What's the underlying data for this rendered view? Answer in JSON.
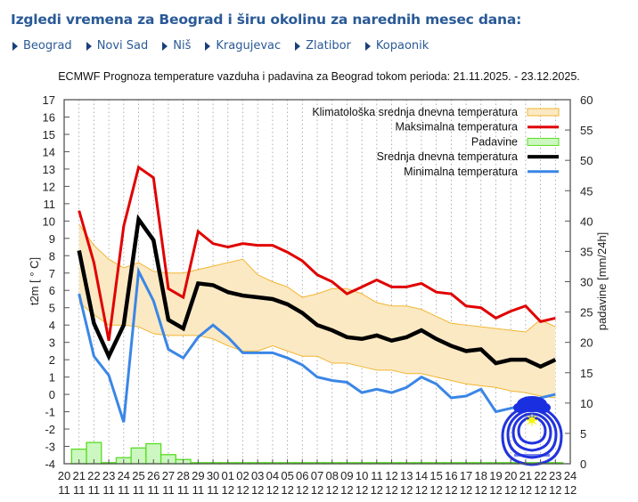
{
  "header": {
    "title": "Izgledi vremena za Beograd i širu okolinu za narednih mesec dana:"
  },
  "nav": {
    "items": [
      {
        "label": "Beograd"
      },
      {
        "label": "Novi Sad"
      },
      {
        "label": "Niš"
      },
      {
        "label": "Kragujevac"
      },
      {
        "label": "Zlatibor"
      },
      {
        "label": "Kopaonik"
      }
    ]
  },
  "colors": {
    "accent": "#2a5a97",
    "max": "#e00000",
    "mean": "#000000",
    "min": "#3a86e6",
    "clim_fill": "#fbe9c4",
    "clim_line": "#f2b632",
    "precip_fill": "#ccf7c0",
    "precip_line": "#55dd22"
  },
  "chart_data": {
    "type": "line",
    "title": "ECMWF Prognoza temperature vazduha i padavina za Beograd tokom perioda: 21.11.2025. - 23.12.2025.",
    "ylabel": "t2m [ ° C]",
    "y2label": "padavine [mm/24h]",
    "ylim": [
      -4,
      17
    ],
    "y2lim": [
      0,
      60
    ],
    "yticks": [
      "-4",
      "-3",
      "-2",
      "-1",
      "0",
      "1",
      "2",
      "3",
      "4",
      "5",
      "6",
      "7",
      "8",
      "9",
      "10",
      "11",
      "12",
      "13",
      "14",
      "15",
      "16",
      "17"
    ],
    "y2ticks": [
      "0",
      "5",
      "10",
      "15",
      "20",
      "25",
      "30",
      "35",
      "40",
      "45",
      "50",
      "55",
      "60"
    ],
    "xticks": [
      {
        "day": "20",
        "month": "11"
      },
      {
        "day": "21",
        "month": "11"
      },
      {
        "day": "22",
        "month": "11"
      },
      {
        "day": "23",
        "month": "11"
      },
      {
        "day": "24",
        "month": "11"
      },
      {
        "day": "25",
        "month": "11"
      },
      {
        "day": "26",
        "month": "11"
      },
      {
        "day": "27",
        "month": "11"
      },
      {
        "day": "28",
        "month": "11"
      },
      {
        "day": "29",
        "month": "11"
      },
      {
        "day": "30",
        "month": "11"
      },
      {
        "day": "01",
        "month": "12"
      },
      {
        "day": "02",
        "month": "12"
      },
      {
        "day": "03",
        "month": "12"
      },
      {
        "day": "04",
        "month": "12"
      },
      {
        "day": "05",
        "month": "12"
      },
      {
        "day": "06",
        "month": "12"
      },
      {
        "day": "07",
        "month": "12"
      },
      {
        "day": "08",
        "month": "12"
      },
      {
        "day": "09",
        "month": "12"
      },
      {
        "day": "10",
        "month": "12"
      },
      {
        "day": "11",
        "month": "12"
      },
      {
        "day": "12",
        "month": "12"
      },
      {
        "day": "13",
        "month": "12"
      },
      {
        "day": "14",
        "month": "12"
      },
      {
        "day": "15",
        "month": "12"
      },
      {
        "day": "16",
        "month": "12"
      },
      {
        "day": "17",
        "month": "12"
      },
      {
        "day": "18",
        "month": "12"
      },
      {
        "day": "19",
        "month": "12"
      },
      {
        "day": "20",
        "month": "12"
      },
      {
        "day": "21",
        "month": "12"
      },
      {
        "day": "22",
        "month": "12"
      },
      {
        "day": "23",
        "month": "12"
      },
      {
        "day": "24",
        "month": "12"
      }
    ],
    "x_start_index": 1,
    "legend": {
      "position": "top-right",
      "entries": [
        {
          "key": "clim",
          "label": "Klimatološka srednja dnevna temperatura"
        },
        {
          "key": "max",
          "label": "Maksimalna temperatura"
        },
        {
          "key": "precip",
          "label": "Padavine"
        },
        {
          "key": "mean",
          "label": "Srednja dnevna temperatura"
        },
        {
          "key": "min",
          "label": "Minimalna temperatura"
        }
      ]
    },
    "series": [
      {
        "name": "Maksimalna temperatura",
        "key": "max",
        "values": [
          10.6,
          7.6,
          3.1,
          9.7,
          13.1,
          12.5,
          6.1,
          5.6,
          9.4,
          8.7,
          8.5,
          8.7,
          8.6,
          8.6,
          8.2,
          7.7,
          6.9,
          6.5,
          5.8,
          6.2,
          6.6,
          6.2,
          6.2,
          6.4,
          5.9,
          5.8,
          5.1,
          5.0,
          4.4,
          4.8,
          5.1,
          4.2,
          4.4
        ]
      },
      {
        "name": "Srednja dnevna temperatura",
        "key": "mean",
        "values": [
          8.3,
          4.1,
          2.2,
          4.0,
          10.1,
          8.9,
          4.3,
          3.8,
          6.4,
          6.3,
          5.9,
          5.7,
          5.6,
          5.5,
          5.2,
          4.7,
          4.0,
          3.7,
          3.3,
          3.2,
          3.4,
          3.1,
          3.3,
          3.7,
          3.2,
          2.8,
          2.5,
          2.6,
          1.8,
          2.0,
          2.0,
          1.6,
          2.0
        ]
      },
      {
        "name": "Minimalna temperatura",
        "key": "min",
        "values": [
          5.8,
          2.2,
          1.1,
          -1.6,
          7.1,
          5.4,
          2.6,
          2.1,
          3.3,
          4.0,
          3.3,
          2.4,
          2.4,
          2.4,
          2.1,
          1.7,
          1.0,
          0.8,
          0.7,
          0.1,
          0.3,
          0.1,
          0.4,
          1.0,
          0.6,
          -0.2,
          -0.1,
          0.3,
          -1.0,
          -0.8,
          -0.6,
          -0.2,
          0.0
        ]
      },
      {
        "name": "Klimatološka srednja dnevna temperatura (gornja)",
        "key": "clim_hi",
        "values": [
          9.8,
          8.6,
          7.8,
          7.3,
          7.6,
          7.1,
          7.0,
          7.0,
          7.2,
          7.4,
          7.6,
          7.8,
          6.9,
          6.5,
          6.2,
          5.6,
          5.8,
          6.1,
          6.1,
          5.8,
          5.3,
          5.1,
          5.1,
          4.9,
          4.5,
          4.1,
          4.0,
          3.9,
          3.8,
          3.7,
          3.6,
          4.3,
          3.9
        ]
      },
      {
        "name": "Klimatološka srednja dnevna temperatura (donja)",
        "key": "clim_lo",
        "values": [
          5.3,
          4.6,
          4.0,
          4.0,
          3.9,
          3.5,
          3.4,
          3.4,
          3.4,
          3.2,
          2.8,
          2.5,
          2.5,
          2.8,
          2.5,
          2.2,
          2.2,
          1.8,
          1.8,
          1.6,
          1.4,
          1.4,
          1.2,
          1.2,
          1.0,
          0.8,
          0.6,
          0.5,
          0.4,
          0.2,
          0.1,
          -0.1,
          -0.2
        ]
      },
      {
        "name": "Padavine",
        "key": "precip",
        "axis": "right",
        "values": [
          2.4,
          3.5,
          0.1,
          1.0,
          2.6,
          3.3,
          1.5,
          0.7,
          0.1,
          0.1,
          0,
          0,
          0,
          0,
          0,
          0,
          0,
          0,
          0,
          0,
          0,
          0,
          0,
          0.1,
          0,
          0,
          0,
          0,
          0,
          0,
          0,
          0.1,
          0.1
        ]
      }
    ],
    "grid": "vertical-dotted"
  }
}
